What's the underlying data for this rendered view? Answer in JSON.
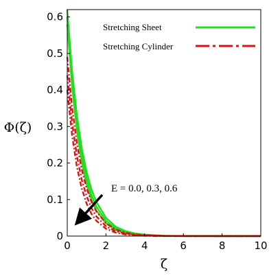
{
  "chart_data": {
    "type": "line",
    "title": "",
    "xlabel": "ζ",
    "ylabel": "Φ(ζ)",
    "xlim": [
      0,
      10
    ],
    "ylim": [
      0,
      0.62
    ],
    "xticks": [
      0,
      2,
      4,
      6,
      8,
      10
    ],
    "yticks": [
      0,
      0.1,
      0.2,
      0.3,
      0.4,
      0.5,
      0.6
    ],
    "xtick_labels": [
      "0",
      "2",
      "4",
      "6",
      "8",
      "10"
    ],
    "ytick_labels": [
      "0",
      "0.1",
      "0.2",
      "0.3",
      "0.4",
      "0.5",
      "0.6"
    ],
    "grid": false,
    "legend_position": "top-right",
    "legend": [
      {
        "label": "Stretching Sheet",
        "color": "#22dd22",
        "style": "solid"
      },
      {
        "label": "Stretching Cylinder",
        "color": "#dd1111",
        "style": "dashed"
      }
    ],
    "annotation": {
      "text": "E = 0.0, 0.3, 0.6",
      "arrow": true
    },
    "series": [
      {
        "group": "Stretching Sheet",
        "E": 0.0,
        "color": "#22dd22",
        "style": "solid",
        "x": [
          0,
          0.25,
          0.5,
          0.75,
          1,
          1.25,
          1.5,
          2,
          2.5,
          3,
          3.5,
          4,
          5,
          6,
          8,
          10
        ],
        "y": [
          0.62,
          0.452,
          0.33,
          0.241,
          0.176,
          0.128,
          0.094,
          0.05,
          0.026,
          0.014,
          0.0075,
          0.004,
          0.0011,
          0.0003,
          0,
          0
        ]
      },
      {
        "group": "Stretching Sheet",
        "E": 0.3,
        "color": "#22dd22",
        "style": "solid",
        "x": [
          0,
          0.25,
          0.5,
          0.75,
          1,
          1.25,
          1.5,
          2,
          2.5,
          3,
          3.5,
          4,
          5,
          6,
          8,
          10
        ],
        "y": [
          0.6,
          0.43,
          0.308,
          0.221,
          0.158,
          0.113,
          0.081,
          0.042,
          0.021,
          0.011,
          0.0056,
          0.0029,
          0.0007,
          0.0002,
          0,
          0
        ]
      },
      {
        "group": "Stretching Sheet",
        "E": 0.6,
        "color": "#22dd22",
        "style": "solid",
        "x": [
          0,
          0.25,
          0.5,
          0.75,
          1,
          1.25,
          1.5,
          2,
          2.5,
          3,
          3.5,
          4,
          5,
          6,
          8,
          10
        ],
        "y": [
          0.58,
          0.408,
          0.287,
          0.202,
          0.142,
          0.1,
          0.07,
          0.035,
          0.017,
          0.0085,
          0.0042,
          0.0021,
          0.0005,
          0.0001,
          0,
          0
        ]
      },
      {
        "group": "Stretching Cylinder",
        "E": 0.0,
        "color": "#dd1111",
        "style": "dashed",
        "x": [
          0,
          0.25,
          0.5,
          0.75,
          1,
          1.25,
          1.5,
          2,
          2.5,
          3,
          3.5,
          4,
          5,
          6,
          8,
          10
        ],
        "y": [
          0.49,
          0.352,
          0.253,
          0.182,
          0.131,
          0.094,
          0.068,
          0.035,
          0.018,
          0.0094,
          0.0049,
          0.0025,
          0.0007,
          0.0002,
          0,
          0
        ]
      },
      {
        "group": "Stretching Cylinder",
        "E": 0.3,
        "color": "#dd1111",
        "style": "dashed",
        "x": [
          0,
          0.25,
          0.5,
          0.75,
          1,
          1.25,
          1.5,
          2,
          2.5,
          3,
          3.5,
          4,
          5,
          6,
          8,
          10
        ],
        "y": [
          0.44,
          0.31,
          0.219,
          0.154,
          0.109,
          0.077,
          0.054,
          0.027,
          0.013,
          0.0067,
          0.0033,
          0.0017,
          0.0004,
          0.0001,
          0,
          0
        ]
      },
      {
        "group": "Stretching Cylinder",
        "E": 0.6,
        "color": "#dd1111",
        "style": "dashed",
        "x": [
          0,
          0.25,
          0.5,
          0.75,
          1,
          1.25,
          1.5,
          2,
          2.5,
          3,
          3.5,
          4,
          5,
          6,
          8,
          10
        ],
        "y": [
          0.4,
          0.275,
          0.189,
          0.13,
          0.089,
          0.061,
          0.042,
          0.02,
          0.0094,
          0.0044,
          0.0021,
          0.001,
          0.0002,
          0,
          0,
          0
        ]
      }
    ]
  }
}
